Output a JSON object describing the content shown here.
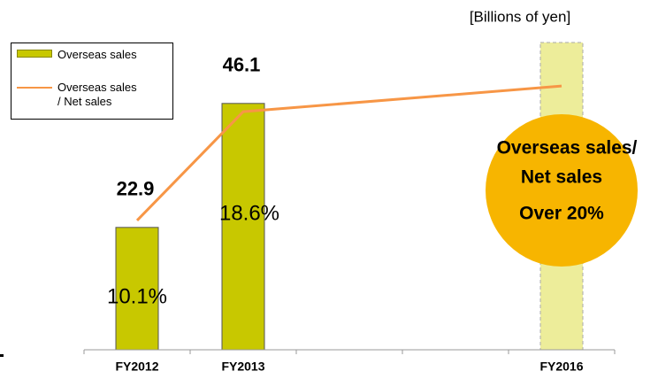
{
  "chart_data": {
    "type": "bar",
    "unit_label": "[Billions of yen]",
    "categories": [
      "FY2012",
      "FY2013",
      null,
      null,
      "FY2016"
    ],
    "ylim": [
      0,
      57.5
    ],
    "y2lim": [
      0,
      24
    ],
    "series": [
      {
        "name": "Overseas sales",
        "type": "bar",
        "color": "#c8c800",
        "colors": [
          "#c8c800",
          "#c8c800",
          null,
          null,
          "#eded9a"
        ],
        "line_styles": [
          "solid",
          "solid",
          null,
          null,
          "dashed"
        ],
        "values": [
          22.9,
          46.1,
          null,
          null,
          57.5
        ]
      },
      {
        "name": "Overseas sales / Net sales",
        "type": "line",
        "axis": "y2",
        "color": "#f79646",
        "values": [
          10.1,
          18.6,
          null,
          null,
          20.6
        ],
        "value_labels": [
          "10.1%",
          "18.6%",
          null,
          null,
          null
        ]
      }
    ],
    "bar_value_labels": [
      "22.9",
      "46.1",
      null,
      null,
      null
    ],
    "annotation": {
      "color": "#f7b500",
      "lines": [
        "Overseas sales/",
        "Net sales",
        "Over 20%"
      ]
    }
  }
}
